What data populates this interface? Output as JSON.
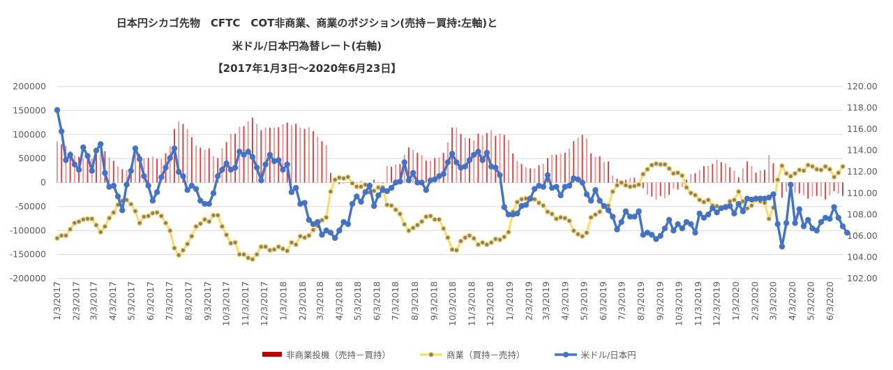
{
  "chart_data": {
    "type": "bar+line",
    "title_lines": [
      "日本円シカゴ先物　CFTC　COT非商業、商業のポジション(売持－買持:左軸)と",
      "米ドル/日本円為替レート(右軸)",
      "【2017年1月3日～2020年6月23日】"
    ],
    "x_start": "1/3/2017",
    "x_end": "6/23/2020",
    "x_frequency": "weekly",
    "x_tick_labels": [
      "1/3/2017",
      "2/3/2017",
      "3/3/2017",
      "4/3/2017",
      "5/3/2017",
      "6/3/2017",
      "7/3/2017",
      "8/3/2017",
      "9/3/2017",
      "10/3/2017",
      "11/3/2017",
      "12/3/2017",
      "1/3/2018",
      "2/3/2018",
      "3/3/2018",
      "4/3/2018",
      "5/3/2018",
      "6/3/2018",
      "7/3/2018",
      "8/3/2018",
      "9/3/2018",
      "10/3/2018",
      "11/3/2018",
      "12/3/2018",
      "1/3/2019",
      "2/3/2019",
      "3/3/2019",
      "4/3/2019",
      "5/3/2019",
      "6/3/2019",
      "7/3/2019",
      "8/3/2019",
      "9/3/2019",
      "10/3/2019",
      "11/3/2019",
      "12/3/2019",
      "1/3/2020",
      "2/3/2020",
      "3/3/2020",
      "4/3/2020",
      "5/3/2020",
      "6/3/2020"
    ],
    "left_axis": {
      "ylim": [
        -200000,
        200000
      ],
      "tick_labels": [
        "200000",
        "150000",
        "100000",
        "50000",
        "0",
        "-50000",
        "-100000",
        "-150000",
        "-200000"
      ]
    },
    "right_axis": {
      "ylim": [
        102,
        120
      ],
      "tick_labels": [
        "120.00",
        "118.00",
        "116.00",
        "114.00",
        "112.00",
        "110.00",
        "108.00",
        "106.00",
        "104.00",
        "102.00"
      ]
    },
    "grid": true,
    "legend_position": "bottom",
    "series": [
      {
        "name": "非商業投機（売持－買持）",
        "type": "bar",
        "axis": "left",
        "color": "#c00000",
        "values": [
          85800,
          79900,
          77000,
          65400,
          56700,
          53800,
          50900,
          49400,
          50900,
          69800,
          65400,
          65400,
          52300,
          45100,
          33400,
          27600,
          26200,
          34900,
          59600,
          59600,
          50900,
          50900,
          53800,
          49400,
          49400,
          61000,
          75600,
          111900,
          127900,
          122100,
          111900,
          94500,
          77000,
          72700,
          68300,
          71200,
          55200,
          50900,
          71200,
          84300,
          101700,
          101700,
          116300,
          117700,
          127900,
          135200,
          122100,
          109000,
          114400,
          114400,
          114400,
          115300,
          121700,
          125000,
          119200,
          122500,
          114400,
          111900,
          115300,
          107100,
          95900,
          86200,
          78000,
          19900,
          0,
          -3400,
          -2400,
          0,
          0,
          0,
          3900,
          0,
          0,
          6300,
          1500,
          -1500,
          34400,
          33000,
          37800,
          38800,
          58100,
          73100,
          67900,
          62000,
          57100,
          46000,
          45100,
          50900,
          52300,
          62000,
          83900,
          114400,
          114400,
          101700,
          93600,
          92100,
          87600,
          102100,
          98300,
          103200,
          109400,
          97400,
          102100,
          99300,
          88700,
          60600,
          45100,
          38800,
          31900,
          29500,
          29500,
          36300,
          38800,
          50900,
          58100,
          58100,
          61000,
          62000,
          70800,
          86200,
          93500,
          99300,
          92100,
          60600,
          53400,
          54900,
          42600,
          44000,
          14500,
          8000,
          3400,
          5800,
          9900,
          9900,
          0,
          -11600,
          -24700,
          -29500,
          -35300,
          -27900,
          -33100,
          -25700,
          -13100,
          -14500,
          -9700,
          6300,
          17900,
          19400,
          26600,
          34400,
          34400,
          38800,
          47500,
          42600,
          40200,
          31900,
          24700,
          11100,
          29500,
          44000,
          34400,
          20800,
          25600,
          26600,
          57100,
          40200,
          0,
          -31400,
          -19400,
          -17000,
          -21800,
          -22800,
          -26600,
          -33800,
          -29000,
          -27900,
          -29000,
          -35300,
          -26600,
          -17900,
          -22800,
          -27900
        ]
      },
      {
        "name": "商業（買持－売持）",
        "type": "line",
        "axis": "left",
        "color": "#ffd966",
        "marker_color": "#808080",
        "values": [
          -116000,
          -110500,
          -110500,
          -97400,
          -84300,
          -81400,
          -77000,
          -75600,
          -75600,
          -88700,
          -103200,
          -91600,
          -74100,
          -62500,
          -46500,
          -37800,
          -36300,
          -45100,
          -59600,
          -84300,
          -71200,
          -69800,
          -63900,
          -62500,
          -69800,
          -84300,
          -100300,
          -136600,
          -151200,
          -141000,
          -127900,
          -111900,
          -91600,
          -85800,
          -77000,
          -81400,
          -68300,
          -68300,
          -91600,
          -109000,
          -126500,
          -125000,
          -149700,
          -149700,
          -157000,
          -160000,
          -149700,
          -133700,
          -133700,
          -141000,
          -139500,
          -133700,
          -138100,
          -142400,
          -125000,
          -129400,
          -111900,
          -114800,
          -110500,
          -98800,
          -90100,
          -78500,
          -72700,
          -18900,
          5800,
          10200,
          8700,
          11600,
          -1500,
          -8700,
          -8700,
          -4400,
          -20300,
          -17400,
          -10200,
          -10200,
          -46500,
          -48000,
          -56700,
          -65400,
          -87200,
          -100300,
          -94500,
          -88700,
          -81400,
          -71200,
          -69800,
          -77000,
          -77000,
          -95900,
          -114800,
          -139500,
          -141000,
          -122100,
          -114800,
          -110500,
          -116300,
          -129400,
          -125000,
          -129400,
          -125000,
          -117700,
          -119200,
          -113400,
          -103200,
          -61000,
          -40700,
          -34900,
          -33400,
          -32000,
          -34900,
          -42200,
          -48000,
          -61000,
          -65400,
          -75600,
          -72700,
          -74100,
          -79900,
          -100300,
          -107600,
          -111900,
          -104700,
          -72700,
          -66900,
          -61000,
          -48000,
          -48000,
          -18900,
          -5800,
          0,
          -5800,
          -8700,
          -7300,
          -4400,
          17400,
          27600,
          36300,
          39200,
          37800,
          37800,
          29100,
          18900,
          20300,
          14500,
          -10200,
          -21800,
          -26200,
          -36300,
          -40700,
          -36300,
          -48000,
          -49400,
          -53800,
          -49400,
          -39200,
          -36300,
          -18900,
          -39200,
          -53800,
          -48000,
          -36300,
          -39200,
          -42200,
          -75600,
          -52300,
          5800,
          34900,
          18900,
          13100,
          18900,
          26200,
          24700,
          36300,
          33400,
          27600,
          26200,
          33400,
          27600,
          11600,
          20300,
          33400
        ]
      },
      {
        "name": "米ドル/日本円",
        "type": "line",
        "axis": "right",
        "color": "#4472c4",
        "values": [
          117.8,
          115.8,
          113.1,
          113.6,
          112.7,
          112.2,
          114.3,
          113.5,
          112.1,
          114.0,
          114.6,
          111.9,
          110.6,
          110.7,
          109.7,
          108.4,
          110.8,
          112.1,
          114.2,
          113.2,
          111.6,
          110.7,
          109.3,
          110.1,
          111.5,
          112.4,
          113.3,
          114.2,
          112.0,
          111.6,
          110.3,
          110.7,
          110.4,
          109.3,
          109.0,
          109.0,
          110.0,
          111.6,
          112.2,
          112.8,
          112.2,
          112.4,
          113.9,
          113.6,
          113.9,
          113.4,
          112.4,
          111.2,
          112.7,
          113.6,
          113.0,
          113.1,
          112.2,
          112.7,
          110.1,
          110.5,
          109.0,
          109.1,
          107.5,
          107.1,
          107.3,
          106.1,
          106.5,
          106.3,
          105.8,
          106.5,
          107.3,
          107.1,
          109.0,
          109.7,
          109.2,
          110.1,
          110.7,
          108.8,
          109.8,
          110.3,
          110.2,
          110.5,
          111.0,
          111.1,
          112.9,
          111.2,
          111.9,
          111.0,
          111.0,
          110.3,
          111.2,
          111.3,
          111.6,
          111.8,
          112.9,
          113.7,
          112.9,
          112.4,
          112.5,
          113.1,
          113.6,
          113.9,
          113.1,
          113.8,
          112.5,
          112.4,
          111.7,
          108.7,
          108.0,
          108.0,
          108.1,
          108.8,
          108.9,
          109.5,
          110.4,
          110.7,
          110.6,
          111.7,
          110.5,
          110.6,
          109.8,
          110.6,
          110.7,
          111.4,
          111.3,
          111.0,
          109.9,
          109.3,
          110.3,
          109.3,
          108.8,
          108.4,
          107.8,
          106.6,
          107.3,
          108.3,
          107.8,
          107.8,
          108.3,
          106.1,
          106.3,
          106.1,
          105.7,
          106.0,
          106.7,
          107.5,
          106.5,
          107.1,
          106.7,
          107.3,
          107.1,
          106.3,
          108.1,
          107.7,
          108.0,
          108.6,
          108.2,
          108.6,
          108.7,
          108.8,
          108.1,
          109.0,
          108.3,
          109.5,
          109.4,
          109.5,
          109.5,
          109.5,
          109.6,
          109.9,
          107.1,
          105.0,
          107.2,
          110.8,
          107.2,
          108.5,
          106.9,
          107.5,
          106.7,
          106.5,
          107.3,
          107.7,
          107.6,
          108.7,
          107.7,
          106.9,
          106.3
        ]
      }
    ]
  }
}
